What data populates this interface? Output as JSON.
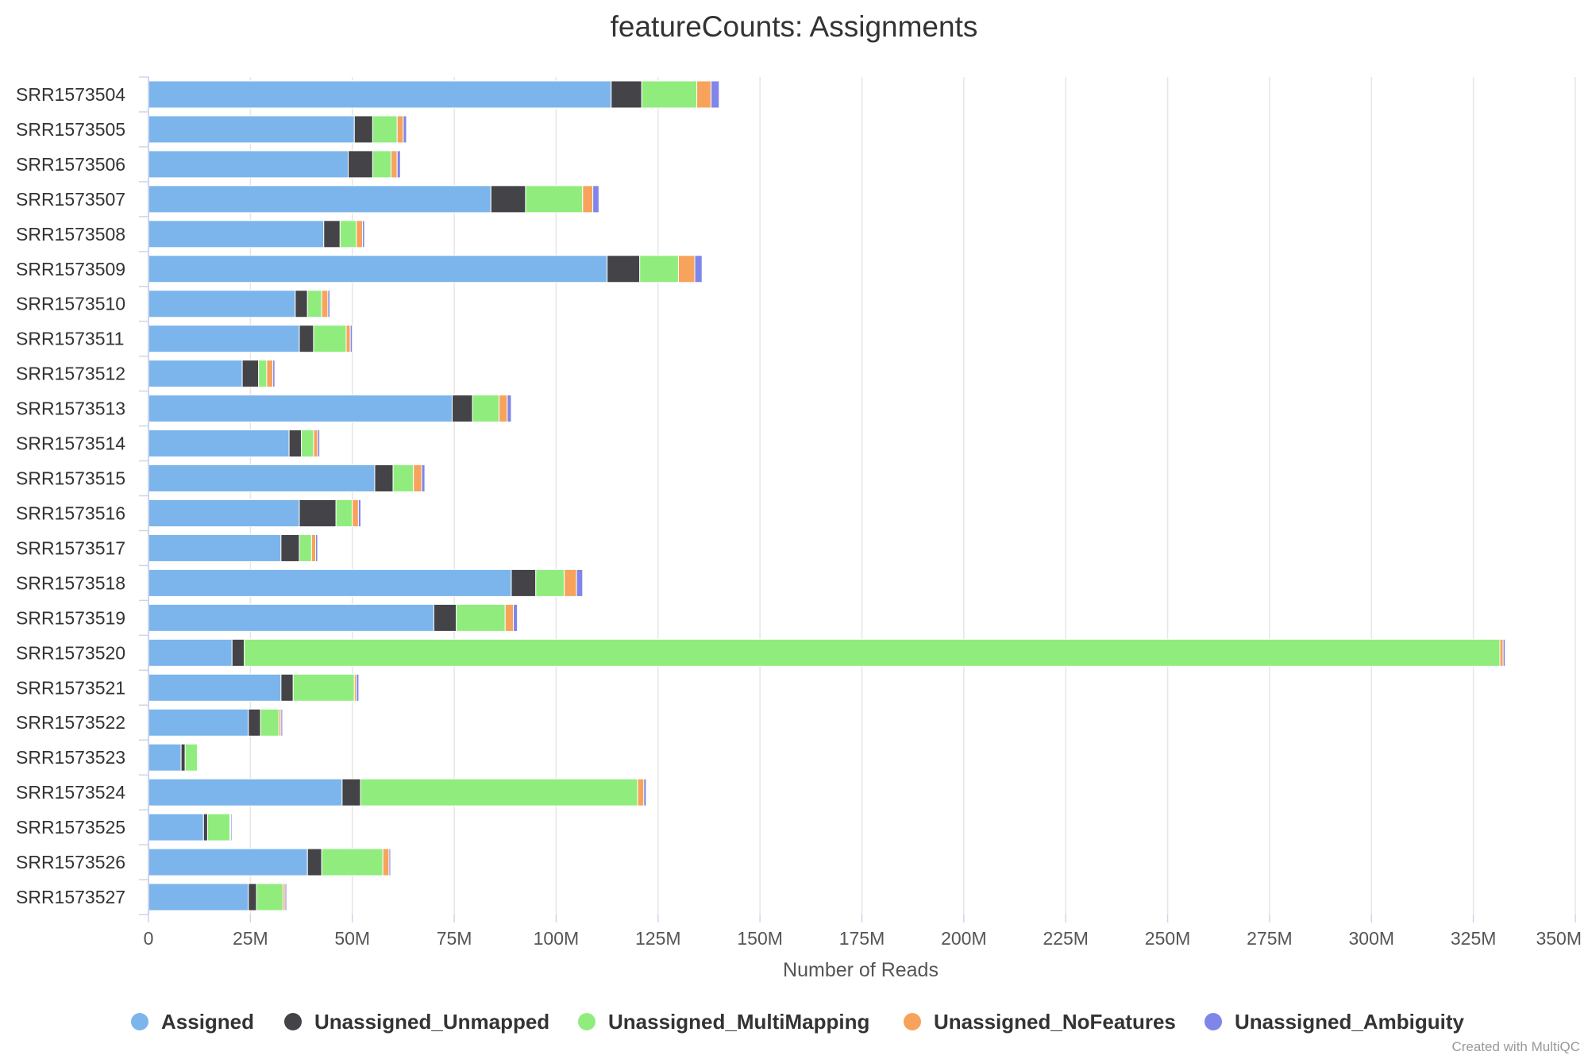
{
  "chart_data": {
    "type": "bar",
    "orientation": "horizontal",
    "stacked": true,
    "title": "featureCounts: Assignments",
    "xlabel": "Number of Reads",
    "ylabel": "",
    "xlim": [
      0,
      350000000
    ],
    "x_ticks": [
      "0",
      "25M",
      "50M",
      "75M",
      "100M",
      "125M",
      "150M",
      "175M",
      "200M",
      "225M",
      "250M",
      "275M",
      "300M",
      "325M",
      "350M"
    ],
    "grid": true,
    "legend_position": "bottom",
    "categories": [
      "SRR1573504",
      "SRR1573505",
      "SRR1573506",
      "SRR1573507",
      "SRR1573508",
      "SRR1573509",
      "SRR1573510",
      "SRR1573511",
      "SRR1573512",
      "SRR1573513",
      "SRR1573514",
      "SRR1573515",
      "SRR1573516",
      "SRR1573517",
      "SRR1573518",
      "SRR1573519",
      "SRR1573520",
      "SRR1573521",
      "SRR1573522",
      "SRR1573523",
      "SRR1573524",
      "SRR1573525",
      "SRR1573526",
      "SRR1573527"
    ],
    "series": [
      {
        "name": "Assigned",
        "color": "#7cb5ec",
        "values": [
          113500000,
          50500000,
          49000000,
          84000000,
          43000000,
          112500000,
          36000000,
          37000000,
          23000000,
          74500000,
          34500000,
          55500000,
          37000000,
          32500000,
          89000000,
          70000000,
          20500000,
          32500000,
          24500000,
          8000000,
          47500000,
          13500000,
          39000000,
          24500000
        ]
      },
      {
        "name": "Unassigned_Unmapped",
        "color": "#434348",
        "values": [
          7500000,
          4500000,
          6000000,
          8500000,
          4000000,
          8000000,
          3000000,
          3500000,
          4000000,
          5000000,
          3000000,
          4500000,
          9000000,
          4500000,
          6000000,
          5500000,
          3000000,
          3000000,
          3000000,
          1000000,
          4500000,
          1000000,
          3500000,
          2000000
        ]
      },
      {
        "name": "Unassigned_MultiMapping",
        "color": "#90ed7d",
        "values": [
          13500000,
          6000000,
          4500000,
          14000000,
          4000000,
          9500000,
          3500000,
          8000000,
          2000000,
          6500000,
          3000000,
          5000000,
          4000000,
          3000000,
          7000000,
          12000000,
          308000000,
          15000000,
          4500000,
          3000000,
          68000000,
          5500000,
          15000000,
          6500000
        ]
      },
      {
        "name": "Unassigned_NoFeatures",
        "color": "#f7a35c",
        "values": [
          3500000,
          1500000,
          1500000,
          2500000,
          1500000,
          4000000,
          1500000,
          1000000,
          1500000,
          2000000,
          1000000,
          2000000,
          1500000,
          1000000,
          3000000,
          2000000,
          800000,
          500000,
          500000,
          200000,
          1500000,
          200000,
          1500000,
          500000
        ]
      },
      {
        "name": "Unassigned_Ambiguity",
        "color": "#8085e9",
        "values": [
          2000000,
          800000,
          800000,
          1500000,
          500000,
          1800000,
          500000,
          500000,
          500000,
          1000000,
          500000,
          800000,
          600000,
          500000,
          1500000,
          1000000,
          500000,
          600000,
          400000,
          150000,
          600000,
          300000,
          400000,
          400000
        ]
      }
    ]
  },
  "credit": "Created with MultiQC"
}
